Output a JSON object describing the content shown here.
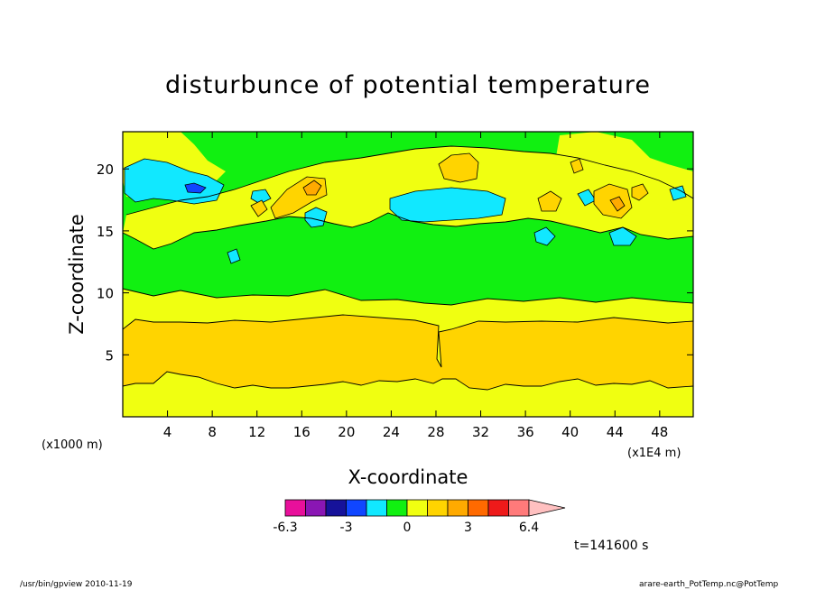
{
  "chart_data": {
    "type": "heatmap",
    "title": "disturbunce of potential temperature",
    "xlabel": "X-coordinate",
    "ylabel": "Z-coordinate",
    "x_unit_left": "(x1000 m)",
    "x_unit_right": "(x1E4 m)",
    "xlim": [
      0,
      51
    ],
    "ylim": [
      0,
      23
    ],
    "x_ticks": [
      4,
      8,
      12,
      16,
      20,
      24,
      28,
      32,
      36,
      40,
      44,
      48
    ],
    "y_ticks": [
      5,
      10,
      15,
      20
    ],
    "time_label": "t=141600 s",
    "colorbar": {
      "tick_labels": [
        "-6.3",
        "-3",
        "0",
        "3",
        "6.4"
      ],
      "colors": [
        "#e8109b",
        "#8a16b4",
        "#16129a",
        "#1046ff",
        "#11e8ff",
        "#11f011",
        "#f0ff11",
        "#ffd400",
        "#ffaa00",
        "#ff6a00",
        "#ee1a1a",
        "#ff7a7a",
        "#ffc0c0"
      ]
    },
    "layers": [
      {
        "z_range": [
          0,
          2.5
        ],
        "value_sign": "positive",
        "color": "#f0ff11"
      },
      {
        "z_range": [
          2.5,
          8
        ],
        "value_sign": "positive",
        "color": "#ffd400"
      },
      {
        "z_range": [
          8,
          10
        ],
        "value_sign": "positive",
        "color": "#f0ff11"
      },
      {
        "z_range": [
          10,
          15
        ],
        "value_sign": "near zero",
        "color": "#11f011"
      },
      {
        "z_range": [
          15,
          23
        ],
        "value_sign": "mixed",
        "color": "mixed"
      }
    ]
  },
  "footer": {
    "left": "/usr/bin/gpview   2010-11-19",
    "right": "arare-earth_PotTemp.nc@PotTemp"
  }
}
